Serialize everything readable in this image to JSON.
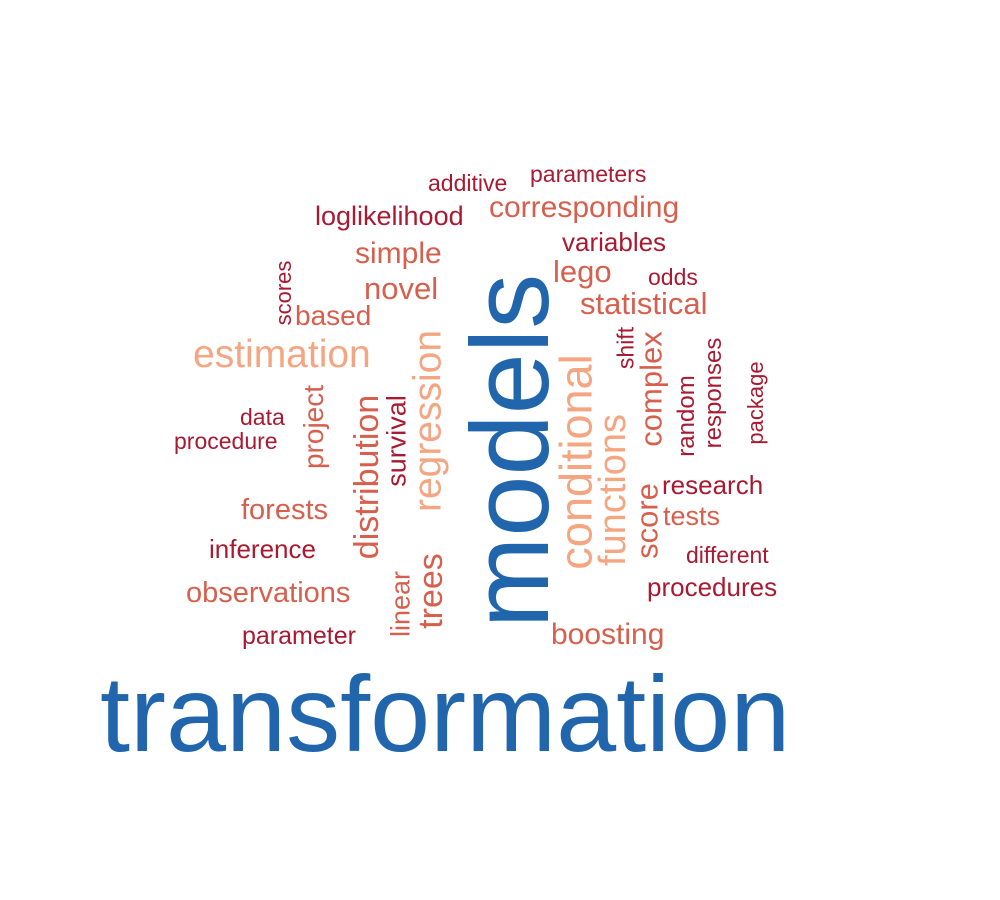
{
  "words": [
    {
      "id": "transformation",
      "text": "transformation",
      "color": "#2166ac"
    },
    {
      "id": "models",
      "text": "models",
      "color": "#2166ac"
    },
    {
      "id": "estimation",
      "text": "estimation",
      "color": "#f4a582"
    },
    {
      "id": "regression",
      "text": "regression",
      "color": "#f4a582"
    },
    {
      "id": "conditional",
      "text": "conditional",
      "color": "#f4a582"
    },
    {
      "id": "functions",
      "text": "functions",
      "color": "#f4a582"
    },
    {
      "id": "distribution",
      "text": "distribution",
      "color": "#d6604d"
    },
    {
      "id": "trees",
      "text": "trees",
      "color": "#d6604d"
    },
    {
      "id": "complex",
      "text": "complex",
      "color": "#d6604d"
    },
    {
      "id": "statistical",
      "text": "statistical",
      "color": "#d6604d"
    },
    {
      "id": "corresponding",
      "text": "corresponding",
      "color": "#d6604d"
    },
    {
      "id": "novel",
      "text": "novel",
      "color": "#d6604d"
    },
    {
      "id": "lego",
      "text": "lego",
      "color": "#d6604d"
    },
    {
      "id": "simple",
      "text": "simple",
      "color": "#d6604d"
    },
    {
      "id": "based",
      "text": "based",
      "color": "#d6604d"
    },
    {
      "id": "project",
      "text": "project",
      "color": "#d6604d"
    },
    {
      "id": "forests",
      "text": "forests",
      "color": "#d6604d"
    },
    {
      "id": "observations",
      "text": "observations",
      "color": "#d6604d"
    },
    {
      "id": "boosting",
      "text": "boosting",
      "color": "#d6604d"
    },
    {
      "id": "score",
      "text": "score",
      "color": "#d6604d"
    },
    {
      "id": "tests",
      "text": "tests",
      "color": "#d6604d"
    },
    {
      "id": "linear",
      "text": "linear",
      "color": "#d6604d"
    },
    {
      "id": "survival",
      "text": "survival",
      "color": "#a81a31"
    },
    {
      "id": "loglikelihood",
      "text": "loglikelihood",
      "color": "#a81a31"
    },
    {
      "id": "additive",
      "text": "additive",
      "color": "#a81a31"
    },
    {
      "id": "parameters",
      "text": "parameters",
      "color": "#a81a31"
    },
    {
      "id": "variables",
      "text": "variables",
      "color": "#a81a31"
    },
    {
      "id": "odds",
      "text": "odds",
      "color": "#a81a31"
    },
    {
      "id": "scores",
      "text": "scores",
      "color": "#a81a31"
    },
    {
      "id": "shift",
      "text": "shift",
      "color": "#a81a31"
    },
    {
      "id": "responses",
      "text": "responses",
      "color": "#a81a31"
    },
    {
      "id": "package",
      "text": "package",
      "color": "#a81a31"
    },
    {
      "id": "random",
      "text": "random",
      "color": "#a81a31"
    },
    {
      "id": "data",
      "text": "data",
      "color": "#a81a31"
    },
    {
      "id": "procedure",
      "text": "procedure",
      "color": "#a81a31"
    },
    {
      "id": "research",
      "text": "research",
      "color": "#a81a31"
    },
    {
      "id": "inference",
      "text": "inference",
      "color": "#a81a31"
    },
    {
      "id": "different",
      "text": "different",
      "color": "#a81a31"
    },
    {
      "id": "procedures",
      "text": "procedures",
      "color": "#a81a31"
    },
    {
      "id": "parameter",
      "text": "parameter",
      "color": "#a81a31"
    }
  ]
}
